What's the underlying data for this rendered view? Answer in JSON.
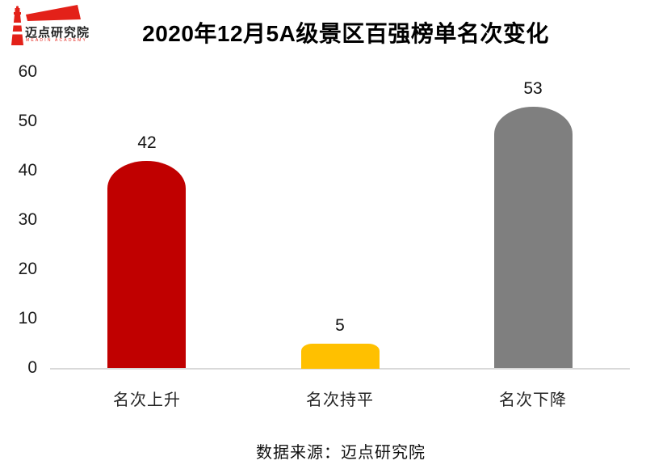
{
  "logo": {
    "name": "迈点研究院",
    "subtitle": "MEADIN ACADEMY",
    "color": "#e32119"
  },
  "chart_data": {
    "type": "bar",
    "title": "2020年12月5A级景区百强榜单名次变化",
    "categories": [
      "名次上升",
      "名次持平",
      "名次下降"
    ],
    "values": [
      42,
      5,
      53
    ],
    "colors": [
      "#c00000",
      "#ffc000",
      "#7f7f7f"
    ],
    "yticks": [
      0,
      10,
      20,
      30,
      40,
      50,
      60
    ],
    "ylim": [
      0,
      60
    ],
    "xlabel": "",
    "ylabel": "",
    "grid": false,
    "legend": false,
    "baseline_color": "#d9d9d9"
  },
  "source": "数据来源：迈点研究院"
}
